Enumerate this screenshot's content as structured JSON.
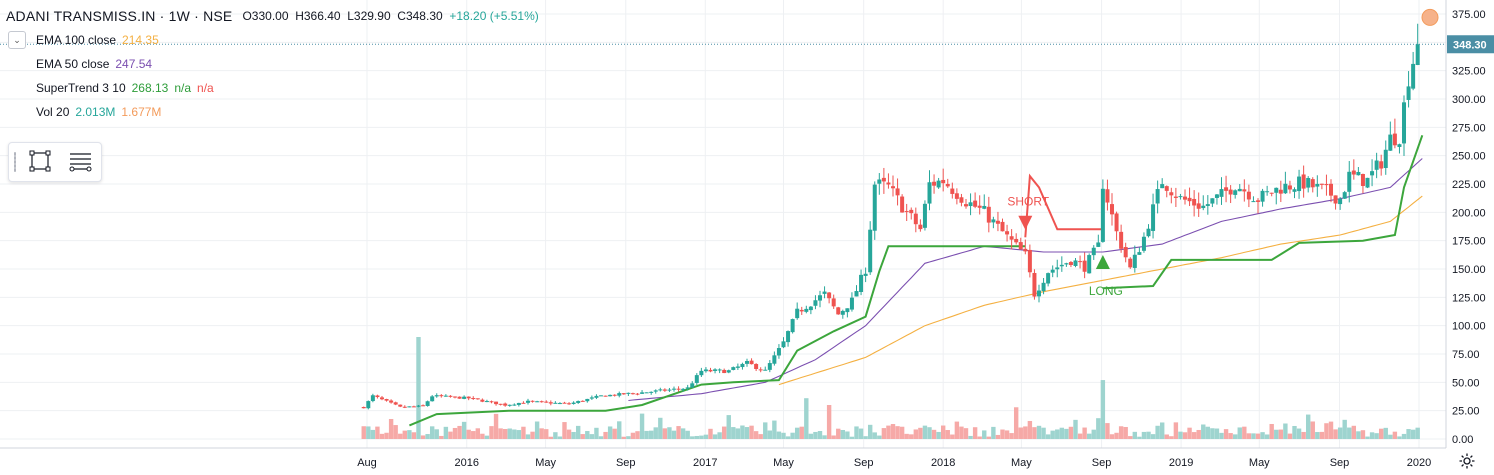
{
  "header": {
    "symbol": "ADANI TRANSMISS.IN · 1W · NSE",
    "open": "O330.00",
    "high": "H366.40",
    "low": "L329.90",
    "close": "C348.30",
    "change": "+18.20 (+5.51%)"
  },
  "indicators": [
    {
      "name": "EMA 100 close",
      "values": [
        {
          "text": "214.35",
          "color": "#f4b042"
        }
      ]
    },
    {
      "name": "EMA 50 close",
      "values": [
        {
          "text": "247.54",
          "color": "#7b4fb0"
        }
      ]
    },
    {
      "name": "SuperTrend 3 10",
      "values": [
        {
          "text": "268.13",
          "color": "#2e9d3a"
        },
        {
          "text": "n/a",
          "color": "#2e9d3a"
        },
        {
          "text": "n/a",
          "color": "#ef5350"
        }
      ]
    },
    {
      "name": "Vol 20",
      "values": [
        {
          "text": "2.013M",
          "color": "#26a69a"
        },
        {
          "text": "1.677M",
          "color": "#f39b5b"
        }
      ]
    }
  ],
  "toolbox": {
    "icons": [
      "rectangle-select-icon",
      "list-lines-icon"
    ]
  },
  "chart_data": {
    "type": "candlestick",
    "ylim": [
      -10,
      380
    ],
    "y_ticks": [
      "375.00",
      "350.00",
      "325.00",
      "300.00",
      "275.00",
      "250.00",
      "225.00",
      "200.00",
      "175.00",
      "150.00",
      "125.00",
      "100.00",
      "75.00",
      "50.00",
      "25.00",
      "0.00"
    ],
    "x_ticks": [
      {
        "label": "Aug",
        "date": "2015-08"
      },
      {
        "label": "2016",
        "date": "2016-01"
      },
      {
        "label": "May",
        "date": "2016-05"
      },
      {
        "label": "Sep",
        "date": "2016-09"
      },
      {
        "label": "2017",
        "date": "2017-01"
      },
      {
        "label": "May",
        "date": "2017-05"
      },
      {
        "label": "Sep",
        "date": "2017-09"
      },
      {
        "label": "2018",
        "date": "2018-01"
      },
      {
        "label": "May",
        "date": "2018-05"
      },
      {
        "label": "Sep",
        "date": "2018-09"
      },
      {
        "label": "2019",
        "date": "2019-01"
      },
      {
        "label": "May",
        "date": "2019-05"
      },
      {
        "label": "Sep",
        "date": "2019-09"
      },
      {
        "label": "2020",
        "date": "2020-01"
      }
    ],
    "last_price_label": "348.30",
    "last_price": 348.3,
    "close_anchors": [
      [
        "2015-07-27",
        28
      ],
      [
        "2015-08-10",
        38
      ],
      [
        "2015-09-21",
        28
      ],
      [
        "2015-10-26",
        29
      ],
      [
        "2015-11-09",
        38
      ],
      [
        "2016-01-04",
        36
      ],
      [
        "2016-02-29",
        30
      ],
      [
        "2016-04-04",
        33
      ],
      [
        "2016-06-06",
        31
      ],
      [
        "2016-07-25",
        38
      ],
      [
        "2016-09-26",
        41
      ],
      [
        "2016-12-05",
        45
      ],
      [
        "2016-12-26",
        60
      ],
      [
        "2017-02-06",
        60
      ],
      [
        "2017-03-06",
        67
      ],
      [
        "2017-04-03",
        60
      ],
      [
        "2017-05-01",
        85
      ],
      [
        "2017-05-22",
        112
      ],
      [
        "2017-06-12",
        120
      ],
      [
        "2017-07-03",
        128
      ],
      [
        "2017-07-24",
        110
      ],
      [
        "2017-08-14",
        122
      ],
      [
        "2017-09-04",
        150
      ],
      [
        "2017-09-18",
        225
      ],
      [
        "2017-10-09",
        222
      ],
      [
        "2017-11-06",
        200
      ],
      [
        "2017-11-27",
        185
      ],
      [
        "2017-12-11",
        225
      ],
      [
        "2018-01-01",
        228
      ],
      [
        "2018-02-05",
        210
      ],
      [
        "2018-03-05",
        200
      ],
      [
        "2018-04-09",
        178
      ],
      [
        "2018-05-07",
        162
      ],
      [
        "2018-05-21",
        128
      ],
      [
        "2018-06-11",
        148
      ],
      [
        "2018-07-16",
        158
      ],
      [
        "2018-08-06",
        152
      ],
      [
        "2018-08-27",
        170
      ],
      [
        "2018-09-03",
        226
      ],
      [
        "2018-09-24",
        182
      ],
      [
        "2018-10-15",
        150
      ],
      [
        "2018-11-05",
        178
      ],
      [
        "2018-12-03",
        228
      ],
      [
        "2018-12-31",
        212
      ],
      [
        "2019-02-04",
        205
      ],
      [
        "2019-03-04",
        215
      ],
      [
        "2019-03-25",
        225
      ],
      [
        "2019-04-29",
        212
      ],
      [
        "2019-06-03",
        222
      ],
      [
        "2019-07-08",
        226
      ],
      [
        "2019-08-12",
        218
      ],
      [
        "2019-09-02",
        212
      ],
      [
        "2019-09-16",
        232
      ],
      [
        "2019-10-14",
        228
      ],
      [
        "2019-11-04",
        245
      ],
      [
        "2019-11-18",
        265
      ],
      [
        "2019-12-02",
        268
      ],
      [
        "2019-12-16",
        320
      ],
      [
        "2019-12-30",
        348.3
      ]
    ],
    "volume_anchors": [
      [
        "2015-10-19",
        90
      ],
      [
        "2017-06-05",
        36
      ],
      [
        "2017-07-10",
        30
      ],
      [
        "2018-04-23",
        28
      ],
      [
        "2018-09-03",
        52
      ],
      [
        "2019-12-30",
        10
      ]
    ],
    "supertrend_segments": [
      {
        "trend": "long",
        "points": [
          [
            "2015-10-05",
            12
          ],
          [
            "2015-11-16",
            22
          ],
          [
            "2016-03-07",
            25
          ],
          [
            "2016-08-01",
            25
          ],
          [
            "2016-09-26",
            30
          ],
          [
            "2016-12-26",
            48
          ],
          [
            "2017-02-13",
            50
          ],
          [
            "2017-04-24",
            52
          ],
          [
            "2017-05-22",
            78
          ],
          [
            "2017-07-17",
            95
          ],
          [
            "2017-09-04",
            108
          ],
          [
            "2017-09-25",
            148
          ],
          [
            "2017-10-09",
            170
          ],
          [
            "2018-05-07",
            170
          ]
        ]
      },
      {
        "trend": "short",
        "points": [
          [
            "2018-05-07",
            178
          ],
          [
            "2018-05-14",
            232
          ],
          [
            "2018-05-28",
            222
          ],
          [
            "2018-06-25",
            185
          ],
          [
            "2018-09-03",
            185
          ]
        ]
      },
      {
        "trend": "long",
        "points": [
          [
            "2018-09-03",
            133
          ],
          [
            "2018-11-19",
            135
          ],
          [
            "2018-12-17",
            158
          ],
          [
            "2019-05-20",
            158
          ],
          [
            "2019-07-01",
            173
          ],
          [
            "2019-10-07",
            175
          ],
          [
            "2019-11-25",
            180
          ],
          [
            "2019-12-09",
            222
          ],
          [
            "2020-01-06",
            268
          ]
        ]
      }
    ],
    "ema50_anchors": [
      [
        "2016-09-05",
        34
      ],
      [
        "2016-12-26",
        40
      ],
      [
        "2017-04-03",
        50
      ],
      [
        "2017-06-19",
        70
      ],
      [
        "2017-09-04",
        100
      ],
      [
        "2017-12-04",
        155
      ],
      [
        "2018-03-05",
        170
      ],
      [
        "2018-06-04",
        165
      ],
      [
        "2018-09-03",
        165
      ],
      [
        "2018-12-03",
        172
      ],
      [
        "2019-03-04",
        192
      ],
      [
        "2019-06-03",
        203
      ],
      [
        "2019-09-02",
        212
      ],
      [
        "2019-11-18",
        222
      ],
      [
        "2020-01-06",
        247.5
      ]
    ],
    "ema100_anchors": [
      [
        "2017-04-24",
        48
      ],
      [
        "2017-09-04",
        72
      ],
      [
        "2017-12-04",
        100
      ],
      [
        "2018-03-05",
        118
      ],
      [
        "2018-06-04",
        130
      ],
      [
        "2018-09-03",
        140
      ],
      [
        "2018-12-03",
        150
      ],
      [
        "2019-03-04",
        160
      ],
      [
        "2019-06-03",
        172
      ],
      [
        "2019-09-02",
        180
      ],
      [
        "2019-11-18",
        192
      ],
      [
        "2020-01-06",
        214.3
      ]
    ],
    "signals": [
      {
        "type": "short",
        "label": "SHORT",
        "date": "2018-05-07",
        "price": 185
      },
      {
        "type": "long",
        "label": "LONG",
        "date": "2018-09-03",
        "price": 150
      }
    ],
    "colors": {
      "up": "#26a69a",
      "down": "#ef5350",
      "volume_up": "#9ed4cf",
      "volume_down": "#f6a9a7",
      "supertrend_long": "#3ca63c",
      "supertrend_short": "#ef5350",
      "ema50": "#7b4fb0",
      "ema100": "#f4b042",
      "last_price_bg": "#4a8ea5"
    }
  }
}
